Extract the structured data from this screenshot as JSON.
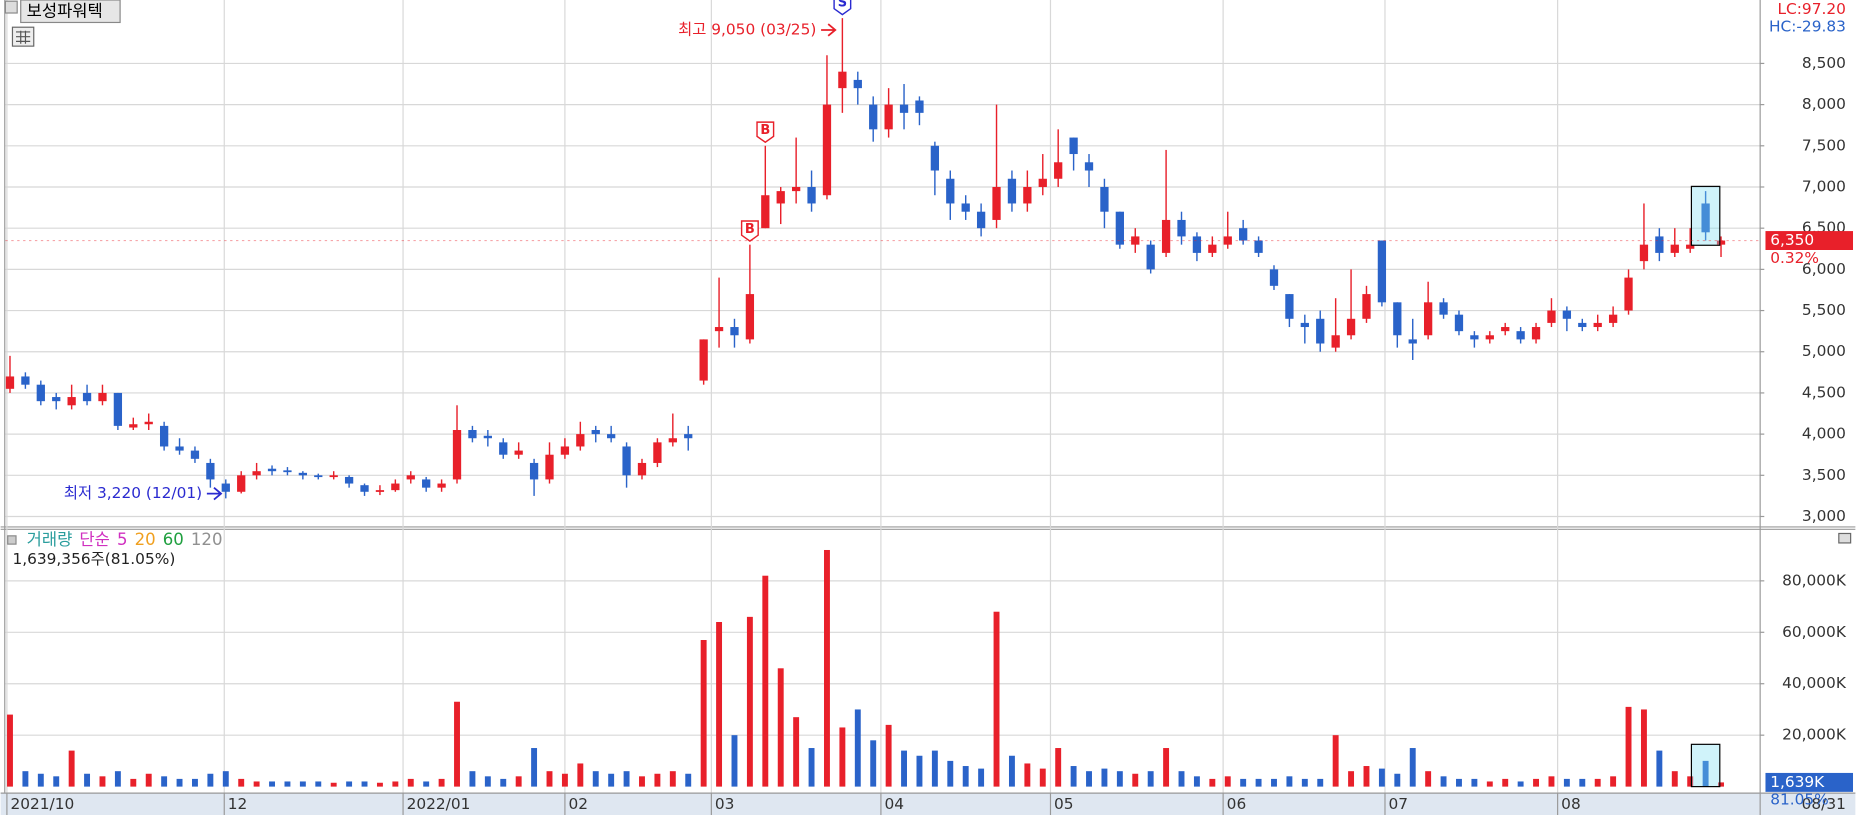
{
  "chart_data": {
    "type": "candlestick",
    "title": "보성파워텍",
    "up_color": "#e8202a",
    "down_color": "#2a63c9",
    "xlim": [
      -0.3,
      113.5
    ],
    "xticks": [
      {
        "value": -0.2,
        "label": "2021/10"
      },
      {
        "value": 13.9,
        "label": "12"
      },
      {
        "value": 25.5,
        "label": "2022/01"
      },
      {
        "value": 36,
        "label": "02"
      },
      {
        "value": 45.5,
        "label": "03"
      },
      {
        "value": 56.5,
        "label": "04"
      },
      {
        "value": 67.5,
        "label": "05"
      },
      {
        "value": 78.7,
        "label": "06"
      },
      {
        "value": 89.2,
        "label": "07"
      },
      {
        "value": 100.4,
        "label": "08"
      }
    ],
    "end_date_label": "08/31",
    "ylim": [
      2880,
      9270
    ],
    "yticks": [
      {
        "value": 3000,
        "label": "3,000"
      },
      {
        "value": 3500,
        "label": "3,500"
      },
      {
        "value": 4000,
        "label": "4,000"
      },
      {
        "value": 4500,
        "label": "4,500"
      },
      {
        "value": 5000,
        "label": "5,000"
      },
      {
        "value": 5500,
        "label": "5,500"
      },
      {
        "value": 6000,
        "label": "6,000"
      },
      {
        "value": 6500,
        "label": "6,500"
      },
      {
        "value": 7000,
        "label": "7,000"
      },
      {
        "value": 7500,
        "label": "7,500"
      },
      {
        "value": 8000,
        "label": "8,000"
      },
      {
        "value": 8500,
        "label": "8,500"
      }
    ],
    "grid": true,
    "candles": [
      [
        4550,
        4950,
        4500,
        4700
      ],
      [
        4700,
        4750,
        4550,
        4600
      ],
      [
        4600,
        4650,
        4350,
        4400
      ],
      [
        4450,
        4500,
        4300,
        4400
      ],
      [
        4350,
        4600,
        4300,
        4450
      ],
      [
        4500,
        4600,
        4350,
        4400
      ],
      [
        4400,
        4600,
        4350,
        4500
      ],
      [
        4500,
        4500,
        4050,
        4100
      ],
      [
        4080,
        4200,
        4050,
        4120
      ],
      [
        4120,
        4250,
        4050,
        4150
      ],
      [
        4100,
        4150,
        3800,
        3850
      ],
      [
        3850,
        3950,
        3750,
        3800
      ],
      [
        3800,
        3850,
        3650,
        3700
      ],
      [
        3650,
        3700,
        3350,
        3450
      ],
      [
        3400,
        3450,
        3220,
        3300
      ],
      [
        3300,
        3550,
        3280,
        3500
      ],
      [
        3500,
        3650,
        3450,
        3550
      ],
      [
        3580,
        3620,
        3500,
        3550
      ],
      [
        3560,
        3600,
        3500,
        3540
      ],
      [
        3530,
        3550,
        3450,
        3500
      ],
      [
        3500,
        3520,
        3450,
        3480
      ],
      [
        3480,
        3550,
        3450,
        3500
      ],
      [
        3480,
        3500,
        3350,
        3400
      ],
      [
        3380,
        3400,
        3250,
        3300
      ],
      [
        3300,
        3380,
        3260,
        3320
      ],
      [
        3320,
        3450,
        3300,
        3400
      ],
      [
        3450,
        3550,
        3400,
        3500
      ],
      [
        3450,
        3480,
        3300,
        3350
      ],
      [
        3350,
        3450,
        3300,
        3400
      ],
      [
        3450,
        4350,
        3400,
        4050
      ],
      [
        4050,
        4100,
        3900,
        3950
      ],
      [
        3980,
        4050,
        3850,
        3950
      ],
      [
        3900,
        3950,
        3700,
        3750
      ],
      [
        3750,
        3900,
        3700,
        3800
      ],
      [
        3650,
        3700,
        3250,
        3450
      ],
      [
        3450,
        3900,
        3400,
        3750
      ],
      [
        3750,
        3950,
        3700,
        3850
      ],
      [
        3850,
        4150,
        3800,
        4000
      ],
      [
        4050,
        4100,
        3900,
        4000
      ],
      [
        4000,
        4100,
        3900,
        3950
      ],
      [
        3850,
        3900,
        3350,
        3500
      ],
      [
        3500,
        3700,
        3450,
        3650
      ],
      [
        3650,
        3950,
        3600,
        3900
      ],
      [
        3900,
        4250,
        3850,
        3950
      ],
      [
        4000,
        4100,
        3800,
        3950
      ],
      [
        4650,
        5150,
        4600,
        5150
      ],
      [
        5250,
        5900,
        5050,
        5300
      ],
      [
        5300,
        5400,
        5050,
        5200
      ],
      [
        5150,
        6300,
        5100,
        5700
      ],
      [
        6500,
        7500,
        6500,
        6900
      ],
      [
        6800,
        7000,
        6550,
        6950
      ],
      [
        6950,
        7600,
        6800,
        7000
      ],
      [
        7000,
        7200,
        6700,
        6800
      ],
      [
        6900,
        8600,
        6850,
        8000
      ],
      [
        8200,
        9050,
        7900,
        8400
      ],
      [
        8300,
        8400,
        8000,
        8200
      ],
      [
        8000,
        8100,
        7550,
        7700
      ],
      [
        7700,
        8200,
        7600,
        8000
      ],
      [
        8000,
        8250,
        7700,
        7900
      ],
      [
        8050,
        8100,
        7750,
        7900
      ],
      [
        7500,
        7550,
        6900,
        7200
      ],
      [
        7100,
        7200,
        6600,
        6800
      ],
      [
        6800,
        6900,
        6600,
        6700
      ],
      [
        6700,
        6800,
        6400,
        6500
      ],
      [
        6600,
        8000,
        6500,
        7000
      ],
      [
        7100,
        7200,
        6700,
        6800
      ],
      [
        6800,
        7200,
        6700,
        7000
      ],
      [
        7000,
        7400,
        6900,
        7100
      ],
      [
        7100,
        7700,
        7000,
        7300
      ],
      [
        7600,
        7600,
        7200,
        7400
      ],
      [
        7300,
        7400,
        7000,
        7200
      ],
      [
        7000,
        7100,
        6500,
        6700
      ],
      [
        6700,
        6700,
        6250,
        6300
      ],
      [
        6300,
        6500,
        6200,
        6400
      ],
      [
        6300,
        6350,
        5950,
        6000
      ],
      [
        6200,
        7450,
        6150,
        6600
      ],
      [
        6600,
        6700,
        6300,
        6400
      ],
      [
        6400,
        6450,
        6100,
        6200
      ],
      [
        6200,
        6400,
        6150,
        6300
      ],
      [
        6300,
        6700,
        6250,
        6400
      ],
      [
        6500,
        6600,
        6300,
        6350
      ],
      [
        6350,
        6400,
        6150,
        6200
      ],
      [
        6000,
        6050,
        5750,
        5800
      ],
      [
        5700,
        5700,
        5300,
        5400
      ],
      [
        5350,
        5450,
        5100,
        5300
      ],
      [
        5400,
        5500,
        5000,
        5100
      ],
      [
        5050,
        5650,
        5000,
        5200
      ],
      [
        5200,
        6000,
        5150,
        5400
      ],
      [
        5400,
        5800,
        5350,
        5700
      ],
      [
        6350,
        6350,
        5550,
        5600
      ],
      [
        5600,
        5600,
        5050,
        5200
      ],
      [
        5150,
        5400,
        4900,
        5100
      ],
      [
        5200,
        5850,
        5150,
        5600
      ],
      [
        5600,
        5650,
        5400,
        5450
      ],
      [
        5450,
        5500,
        5200,
        5250
      ],
      [
        5200,
        5250,
        5050,
        5150
      ],
      [
        5150,
        5250,
        5100,
        5200
      ],
      [
        5250,
        5350,
        5200,
        5300
      ],
      [
        5250,
        5300,
        5100,
        5150
      ],
      [
        5150,
        5350,
        5100,
        5300
      ],
      [
        5350,
        5650,
        5300,
        5500
      ],
      [
        5500,
        5550,
        5250,
        5400
      ],
      [
        5350,
        5400,
        5250,
        5300
      ],
      [
        5300,
        5450,
        5250,
        5350
      ],
      [
        5350,
        5550,
        5300,
        5450
      ],
      [
        5500,
        6000,
        5450,
        5900
      ],
      [
        6100,
        6800,
        6000,
        6300
      ],
      [
        6400,
        6500,
        6100,
        6200
      ],
      [
        6200,
        6500,
        6150,
        6300
      ],
      [
        6250,
        6500,
        6200,
        6300
      ],
      [
        6800,
        6950,
        6350,
        6450
      ],
      [
        6300,
        6400,
        6150,
        6350
      ]
    ],
    "highlight_index": 110,
    "signals": [
      {
        "label": "S",
        "index": 54,
        "color": "#2a2ad0"
      },
      {
        "label": "B",
        "index": 54,
        "color": "#e8202a"
      },
      {
        "label": "B",
        "index": 49,
        "color": "#e8202a"
      },
      {
        "label": "B",
        "index": 48,
        "color": "#e8202a"
      }
    ],
    "max_label": "최고 9,050 (03/25)",
    "max_index": 54,
    "max_value": 9050,
    "min_label": "최저 3,220 (12/01)",
    "min_index": 14,
    "min_value": 3220,
    "lc_label": "LC:97.20",
    "hc_label": "HC:-29.83",
    "last_price_label": "6,350",
    "last_price": 6350,
    "change_label": "0.32%",
    "volume": {
      "legend": [
        "거래량",
        "단순",
        "5",
        "20",
        "60",
        "120"
      ],
      "legend_colors": [
        "#2a9d9d",
        "#d030c0",
        "#d030c0",
        "#f0a020",
        "#20a040",
        "#909090"
      ],
      "info": "1,639,356주(81.05%)",
      "ylim": [
        0,
        99800
      ],
      "yticks": [
        {
          "value": 20000,
          "label": "20,000K"
        },
        {
          "value": 40000,
          "label": "40,000K"
        },
        {
          "value": 60000,
          "label": "60,000K"
        },
        {
          "value": 80000,
          "label": "80,000K"
        }
      ],
      "last_label": "1,639K",
      "last_value": 1639,
      "ratio_label": "81.05%",
      "values": [
        28000,
        6000,
        5000,
        4000,
        14000,
        5000,
        4000,
        6000,
        3000,
        5000,
        4000,
        3000,
        3000,
        5000,
        6000,
        3000,
        2000,
        2000,
        2000,
        2000,
        2000,
        1500,
        2000,
        2000,
        1500,
        2000,
        3000,
        2000,
        3000,
        33000,
        6000,
        4000,
        3000,
        4000,
        15000,
        6000,
        5000,
        9000,
        6000,
        5000,
        6000,
        4000,
        5000,
        6000,
        5000,
        57000,
        64000,
        20000,
        66000,
        82000,
        46000,
        27000,
        15000,
        92000,
        23000,
        30000,
        18000,
        24000,
        14000,
        12000,
        14000,
        10000,
        8000,
        7000,
        68000,
        12000,
        9000,
        7000,
        15000,
        8000,
        6000,
        7000,
        6000,
        5000,
        6000,
        15000,
        6000,
        4000,
        3000,
        4000,
        3000,
        3000,
        3000,
        4000,
        3000,
        3000,
        20000,
        6000,
        8000,
        7000,
        5000,
        15000,
        6000,
        4000,
        3000,
        3000,
        2000,
        3000,
        2000,
        3000,
        4000,
        3000,
        3000,
        3000,
        4000,
        31000,
        30000,
        14000,
        6000,
        4000,
        10000,
        1639
      ]
    }
  }
}
